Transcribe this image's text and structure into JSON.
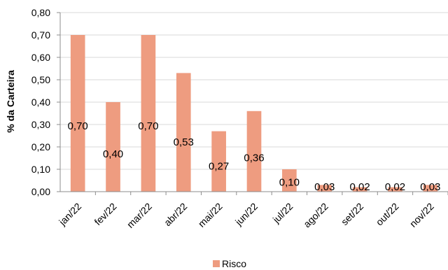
{
  "chart_data": {
    "type": "bar",
    "categories": [
      "jan/22",
      "fev/22",
      "mar/22",
      "abr/22",
      "mai/22",
      "jun/22",
      "jul/22",
      "ago/22",
      "set/22",
      "out/22",
      "nov/22"
    ],
    "series": [
      {
        "name": "Risco",
        "values": [
          0.7,
          0.4,
          0.7,
          0.53,
          0.27,
          0.36,
          0.1,
          0.03,
          0.02,
          0.02,
          0.03
        ],
        "labels": [
          "0,70",
          "0,40",
          "0,70",
          "0,53",
          "0,27",
          "0,36",
          "0,10",
          "0,03",
          "0,02",
          "0,02",
          "0,03"
        ],
        "color": "#EE9C80"
      }
    ],
    "ylabel": "% da Carteira",
    "ylim": [
      0,
      0.8
    ],
    "yticks": [
      "0,00",
      "0,10",
      "0,20",
      "0,30",
      "0,40",
      "0,50",
      "0,60",
      "0,70",
      "0,80"
    ],
    "grid": true,
    "legend": "bottom"
  }
}
